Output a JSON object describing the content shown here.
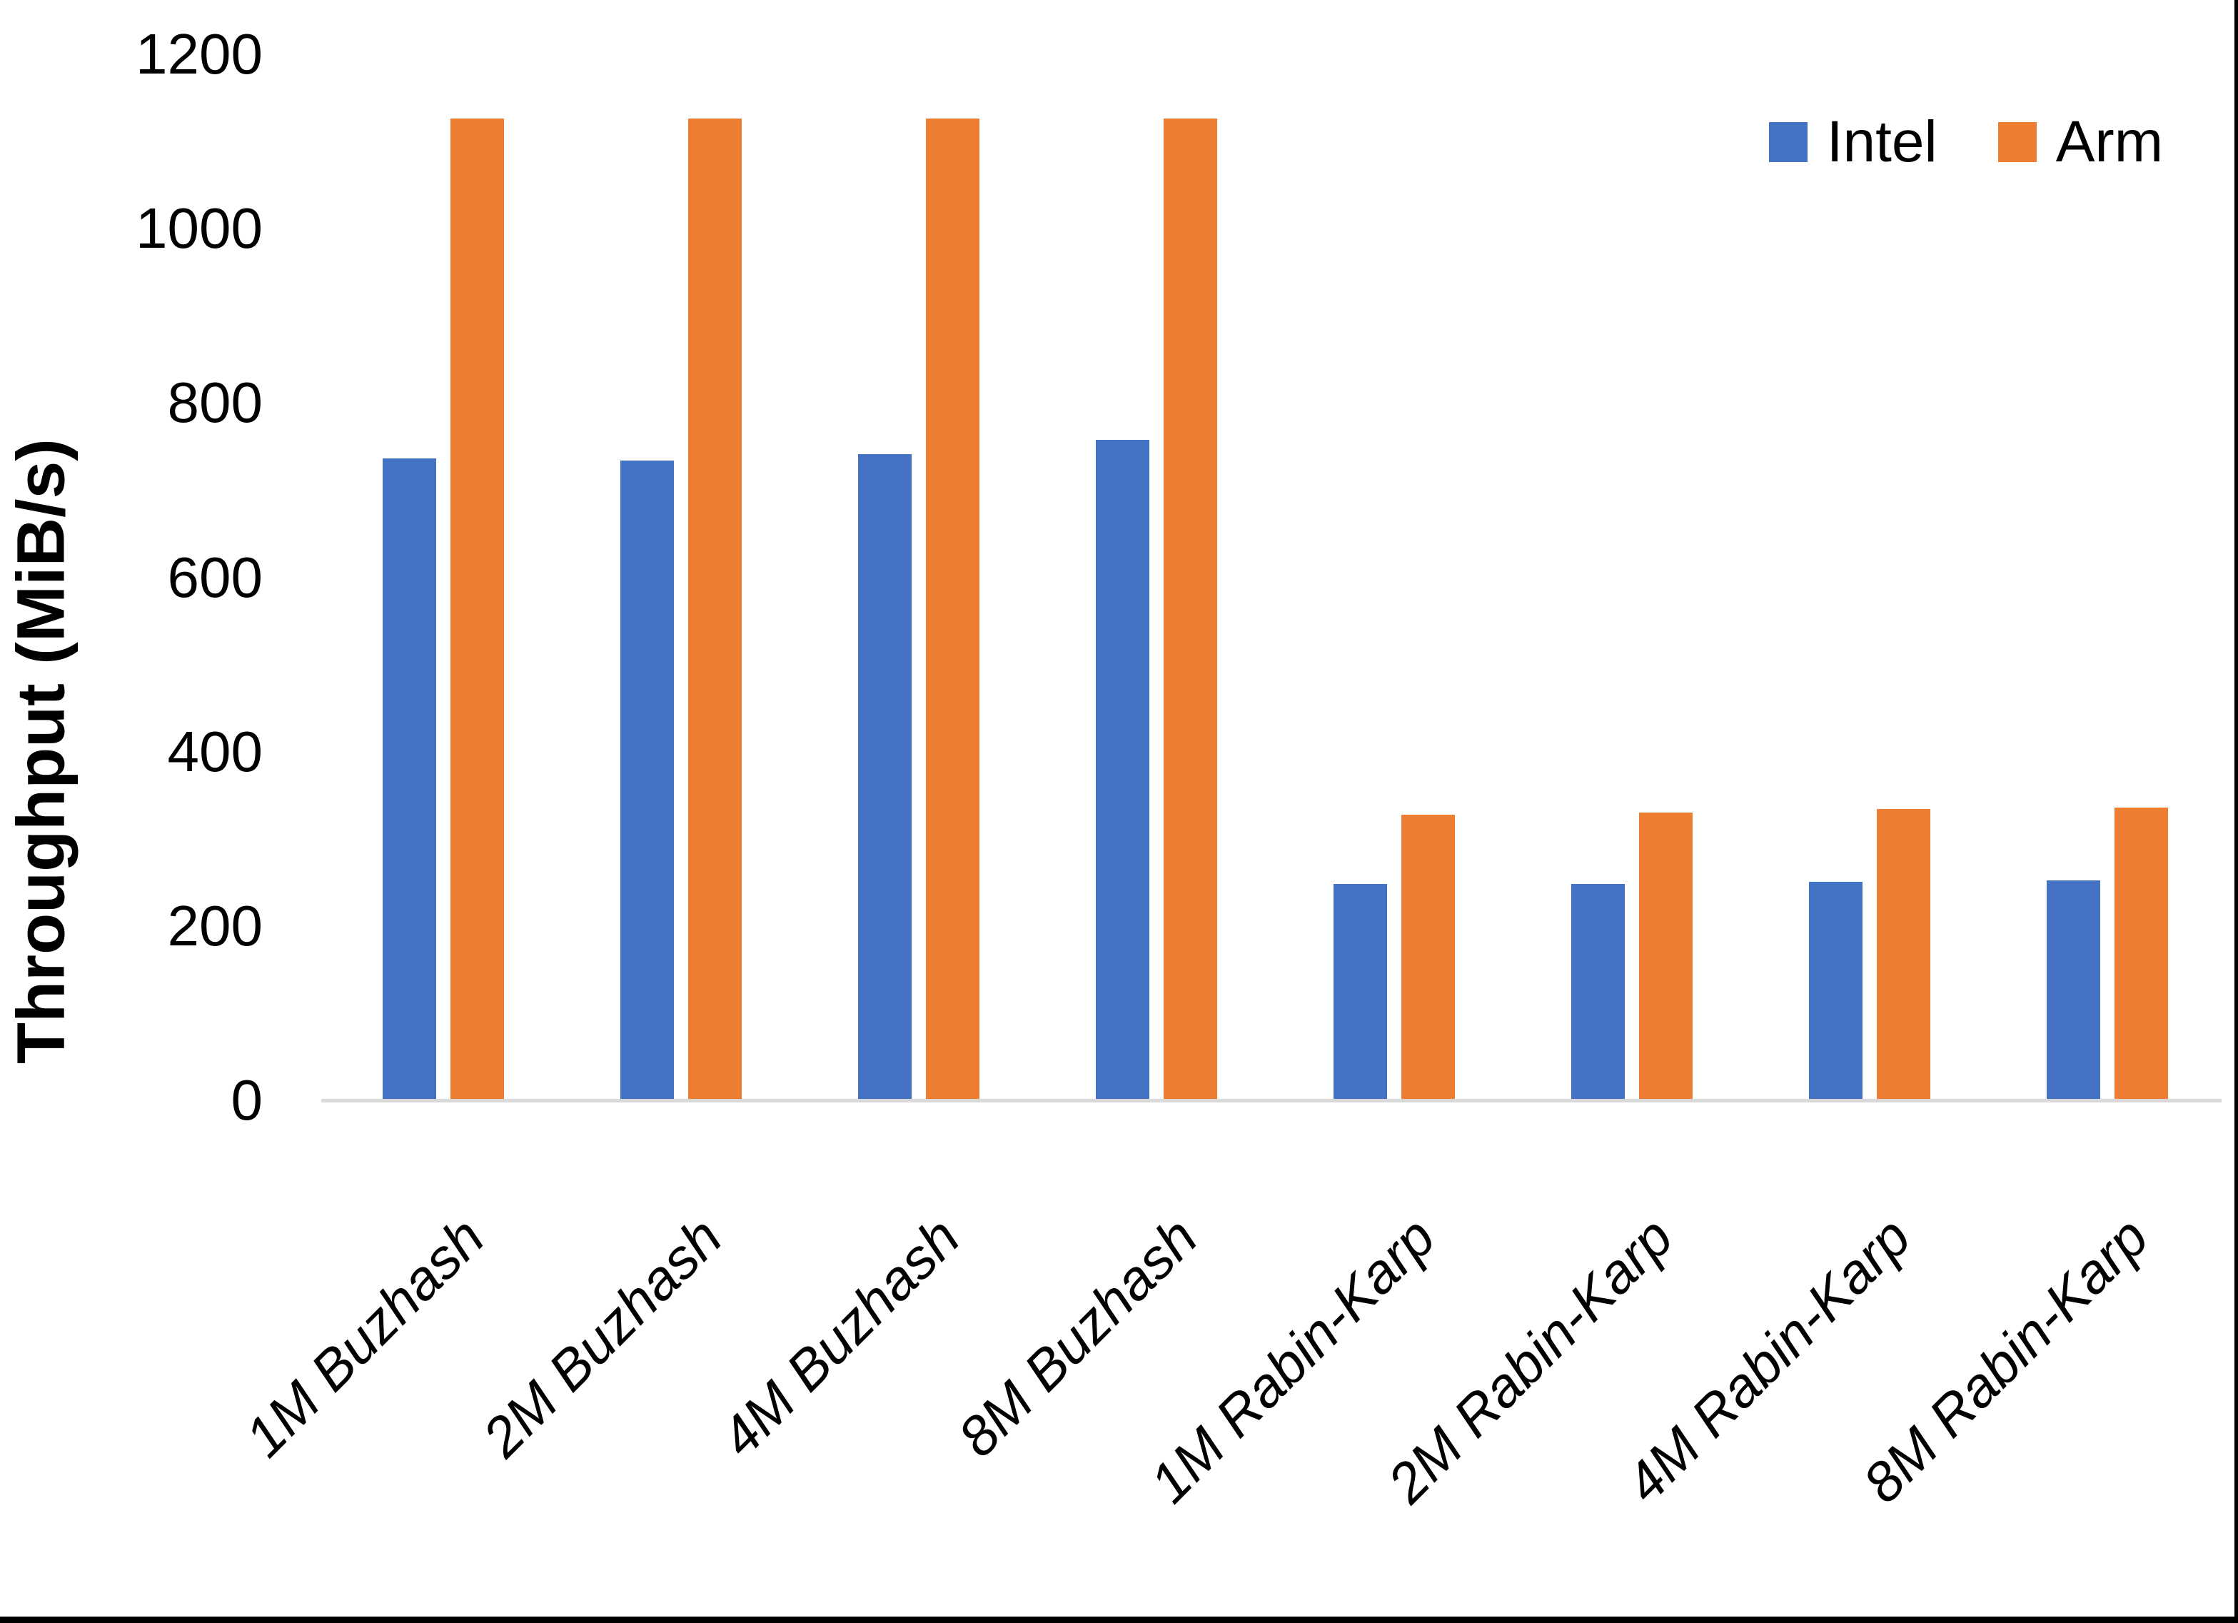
{
  "chart_data": {
    "type": "bar",
    "title": "",
    "ylabel": "Throughput (MiB/s)",
    "xlabel": "",
    "categories": [
      "1M Buzhash",
      "2M Buzhash",
      "4M Buzhash",
      "8M Buzhash",
      "1M Rabin-Karp",
      "2M Rabin-Karp",
      "4M Rabin-Karp",
      "8M Rabin-Karp"
    ],
    "series": [
      {
        "name": "Intel",
        "color": "#4472C4",
        "values": [
          736,
          734,
          741,
          758,
          248,
          248,
          251,
          252
        ]
      },
      {
        "name": "Arm",
        "color": "#ED7D31",
        "values": [
          1126,
          1126,
          1126,
          1126,
          328,
          330,
          334,
          336
        ]
      }
    ],
    "ylim": [
      0,
      1200
    ],
    "y_ticks": [
      0,
      200,
      400,
      600,
      800,
      1000,
      1200
    ],
    "grid": false,
    "legend_position": "top-right"
  },
  "colors": {
    "axis_line": "#D9D9D9",
    "text": "#000000",
    "background": "#FFFFFF",
    "page_border": "#000000"
  }
}
